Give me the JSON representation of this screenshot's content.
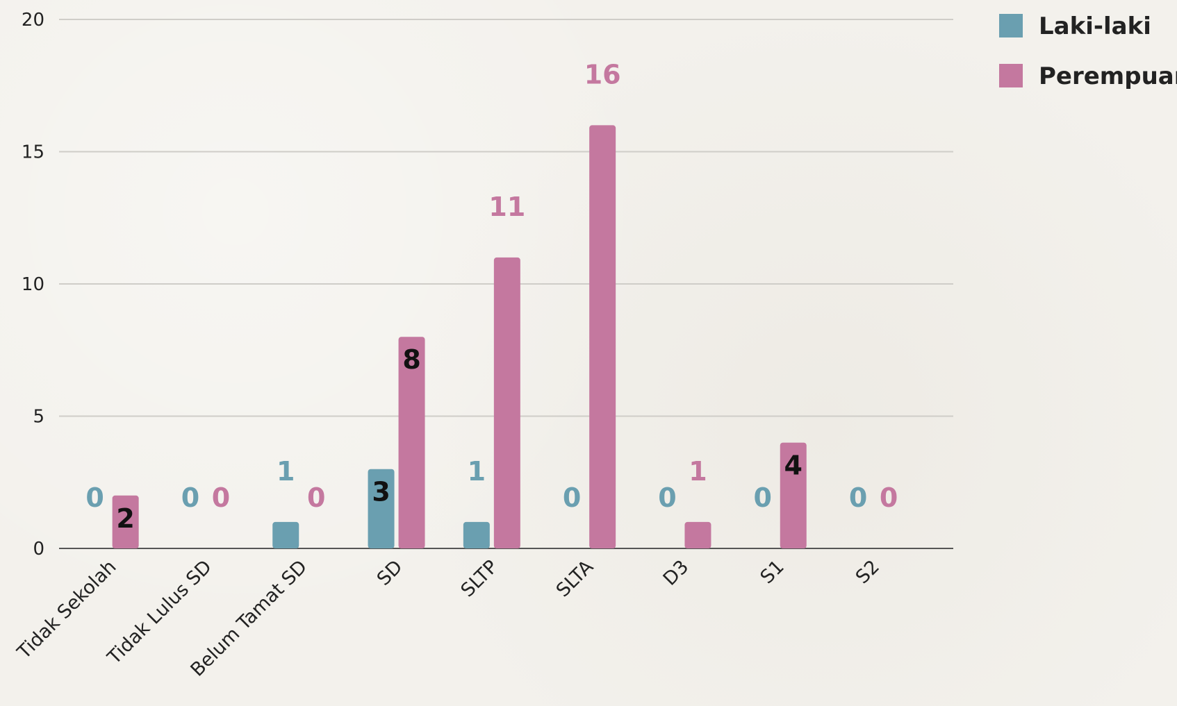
{
  "chart_data": {
    "type": "bar",
    "categories": [
      "Tidak Sekolah",
      "Tidak Lulus SD",
      "Belum Tamat SD",
      "SD",
      "SLTP",
      "SLTA",
      "D3",
      "S1",
      "S2"
    ],
    "series": [
      {
        "name": "Laki-laki",
        "color": "#6a9fb0",
        "values": [
          0,
          0,
          1,
          3,
          1,
          0,
          0,
          0,
          0
        ]
      },
      {
        "name": "Perempuan",
        "color": "#c4789f",
        "values": [
          2,
          0,
          0,
          8,
          11,
          16,
          1,
          4,
          0
        ]
      }
    ],
    "yticks": [
      0,
      5,
      10,
      15,
      20
    ],
    "ylim": [
      0,
      20
    ],
    "grid": true,
    "legend_position": "top-right",
    "title": "",
    "xlabel": "",
    "ylabel": ""
  }
}
